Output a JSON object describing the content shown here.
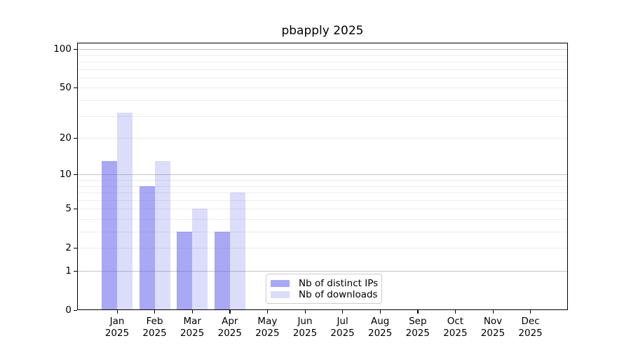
{
  "chart_data": {
    "type": "bar",
    "title": "pbapply 2025",
    "categories": [
      "Jan 2025",
      "Feb 2025",
      "Mar 2025",
      "Apr 2025",
      "May 2025",
      "Jun 2025",
      "Jul 2025",
      "Aug 2025",
      "Sep 2025",
      "Oct 2025",
      "Nov 2025",
      "Dec 2025"
    ],
    "series": [
      {
        "name": "Nb of distinct IPs",
        "color": "rgba(82,82,235,0.5)",
        "values": [
          13,
          8,
          3,
          3,
          null,
          null,
          null,
          null,
          null,
          null,
          null,
          null
        ]
      },
      {
        "name": "Nb of downloads",
        "color": "rgba(82,82,235,0.2)",
        "values": [
          32,
          13,
          5,
          7,
          null,
          null,
          null,
          null,
          null,
          null,
          null,
          null
        ]
      }
    ],
    "y_axis": {
      "scale": "log10(value+1)",
      "ticks": [
        0,
        1,
        2,
        5,
        10,
        20,
        50,
        100
      ],
      "range": [
        0,
        112
      ]
    },
    "gridlines": {
      "orientation": "horizontal",
      "major": [
        1,
        10,
        100
      ],
      "minor": [
        2,
        3,
        4,
        5,
        6,
        7,
        8,
        9,
        20,
        30,
        40,
        50,
        60,
        70,
        80,
        90
      ]
    },
    "legend": {
      "position": "lower-right-of-center",
      "entries": [
        "Nb of distinct IPs",
        "Nb of downloads"
      ]
    },
    "colors": {
      "bar_ips": "rgba(82,82,235,0.5)",
      "bar_downloads": "rgba(82,82,235,0.2)",
      "grid_major": "#c6c6c6",
      "grid_minor": "#ececec",
      "axis": "#000000",
      "legend_border": "#cccccc",
      "text": "#000000"
    }
  }
}
